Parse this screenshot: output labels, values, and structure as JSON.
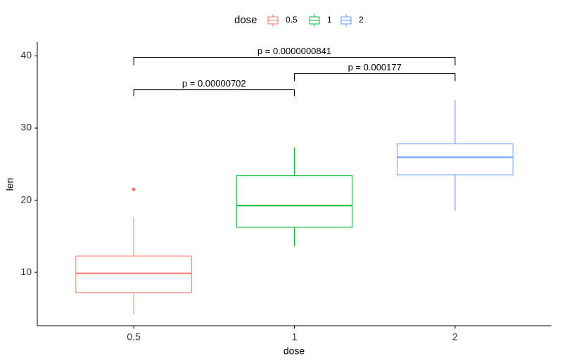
{
  "chart_data": {
    "type": "box",
    "legend_title": "dose",
    "legend_position": "top",
    "x_label": "dose",
    "y_label": "len",
    "categories": [
      "0.5",
      "1",
      "2"
    ],
    "series": [
      {
        "name": "0.5",
        "color": "#F8766D",
        "min": 4.2,
        "q1": 7.2,
        "median": 9.85,
        "q3": 12.25,
        "max": 17.6,
        "outliers": [
          21.5
        ]
      },
      {
        "name": "1",
        "color": "#00BA38",
        "min": 13.6,
        "q1": 16.25,
        "median": 19.25,
        "q3": 23.4,
        "max": 27.3,
        "outliers": []
      },
      {
        "name": "2",
        "color": "#619CFF",
        "min": 18.5,
        "q1": 23.5,
        "median": 25.95,
        "q3": 27.8,
        "max": 33.9,
        "outliers": []
      }
    ],
    "comparisons": [
      {
        "groups": [
          "0.5",
          "1"
        ],
        "label": "p = 0.00000702",
        "y": 35.3,
        "tip": 34.4
      },
      {
        "groups": [
          "1",
          "2"
        ],
        "label": "p = 0.000177",
        "y": 37.55,
        "tip": 36.5
      },
      {
        "groups": [
          "0.5",
          "2"
        ],
        "label": "p = 0.0000000841",
        "y": 39.8,
        "tip": 38.7
      }
    ],
    "ylim": [
      2.6,
      41.9
    ],
    "yticks": [
      10,
      20,
      30,
      40
    ],
    "grid": false
  }
}
